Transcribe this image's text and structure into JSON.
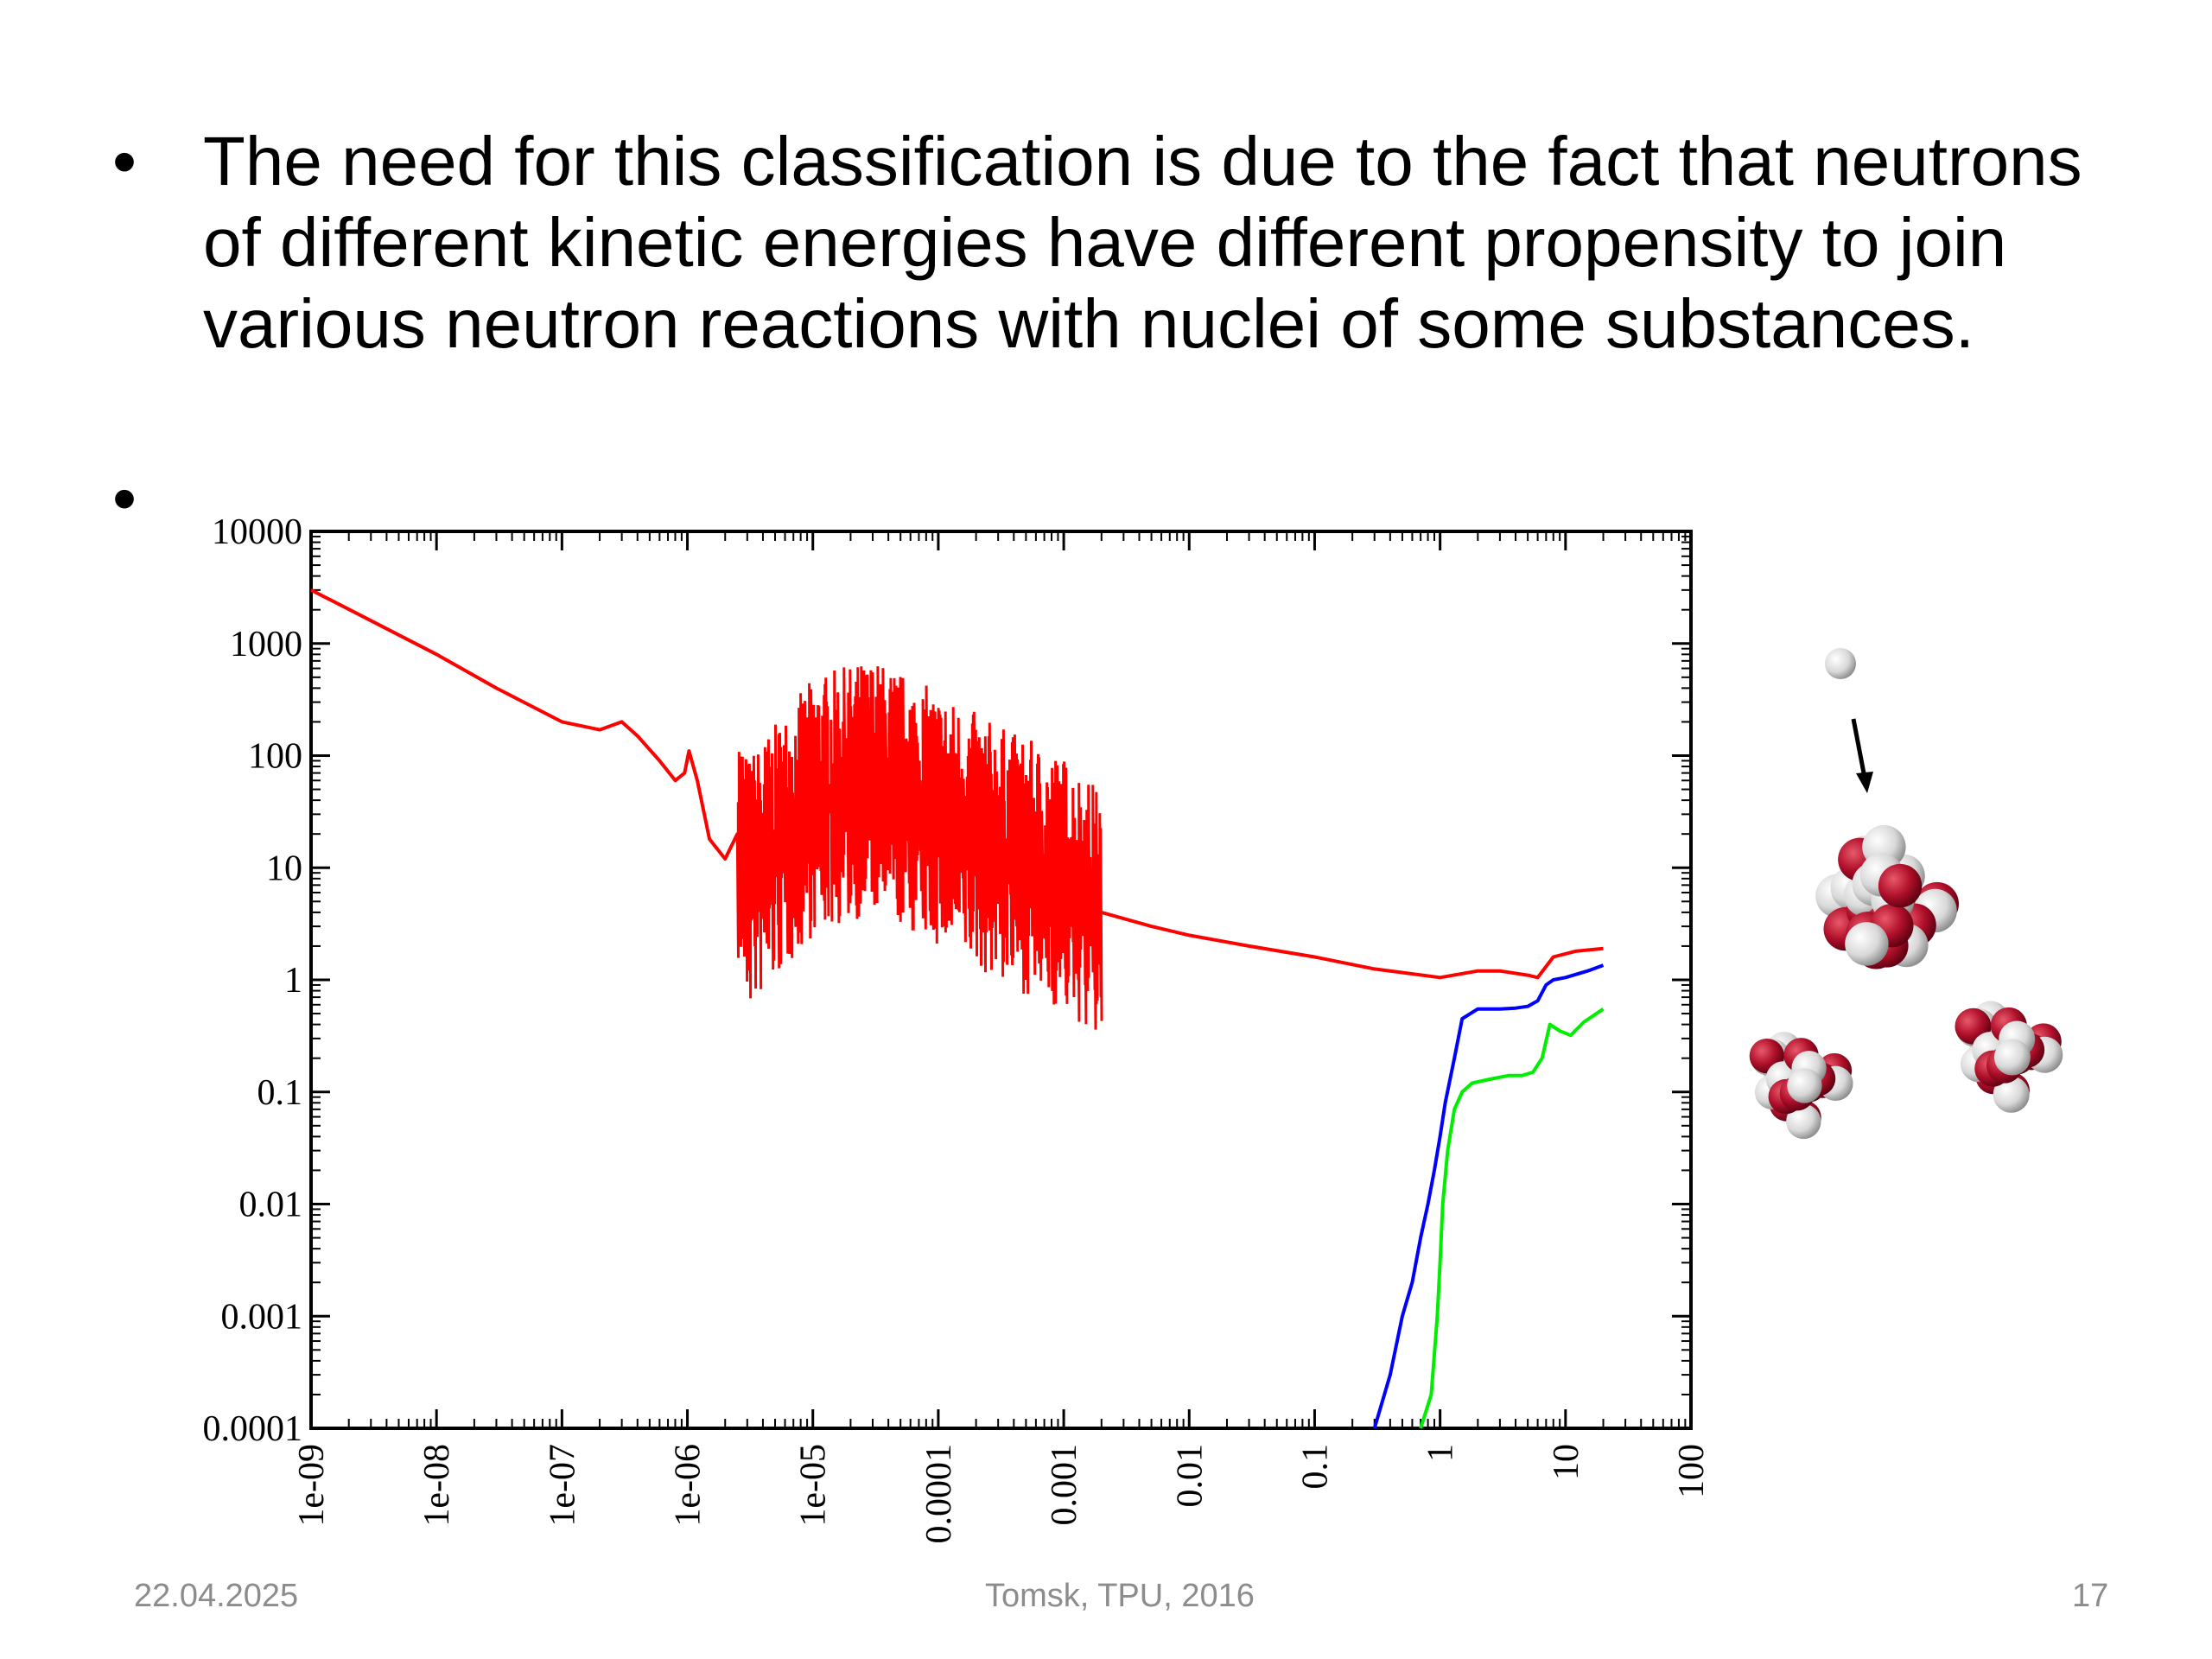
{
  "slide": {
    "bullets": [
      "The need for this classification is due to the fact that neutrons of different kinetic energies have different propensity to join various neutron reactions with nuclei of some substances.",
      ""
    ],
    "bullet_symbol": "•"
  },
  "footer": {
    "date": "22.04.2025",
    "center": "Tomsk, TPU, 2016",
    "page": "17"
  },
  "chart_data": {
    "type": "line",
    "title": "",
    "xlabel": "",
    "ylabel": "",
    "x_scale": "log",
    "y_scale": "log",
    "xlim": [
      1e-09,
      100
    ],
    "ylim": [
      0.0001,
      10000
    ],
    "x_tick_labels": [
      "1e-09",
      "1e-08",
      "1e-07",
      "1e-06",
      "1e-05",
      "0.0001",
      "0.001",
      "0.01",
      "0.1",
      "1",
      "10",
      "100"
    ],
    "y_tick_labels": [
      "10000",
      "1000",
      "100",
      "10",
      "1",
      "0.1",
      "0.01",
      "0.001",
      "0.0001"
    ],
    "grid": false,
    "series": [
      {
        "color": "#ff0000",
        "x": [
          1e-09,
          3e-09,
          1e-08,
          3e-08,
          1e-07,
          2e-07,
          3e-07,
          4e-07,
          6e-07,
          8e-07,
          9.5e-07,
          1.03e-06,
          1.2e-06,
          1.5e-06,
          2e-06,
          2.5e-06,
          3e-06,
          5e-06,
          1e-05,
          3e-05,
          0.0001,
          0.0003,
          0.001,
          0.002,
          0.005,
          0.01,
          0.03,
          0.1,
          0.3,
          1,
          2,
          3,
          5,
          6,
          8,
          12,
          20
        ],
        "y": [
          3000,
          1600,
          800,
          400,
          200,
          170,
          200,
          150,
          90,
          60,
          70,
          110,
          60,
          18,
          12,
          20,
          8,
          15,
          40,
          60,
          30,
          15,
          8,
          4,
          3,
          2.5,
          2,
          1.6,
          1.25,
          1.05,
          1.2,
          1.2,
          1.1,
          1.05,
          1.6,
          1.8,
          1.9
        ]
      },
      {
        "color": "#0000ff",
        "x": [
          0.3,
          0.4,
          0.5,
          0.6,
          0.7,
          0.8,
          0.9,
          1.0,
          1.1,
          1.3,
          1.5,
          2,
          3,
          4,
          5,
          6,
          7,
          8,
          10,
          15,
          20
        ],
        "y": [
          0.0001,
          0.0003,
          0.001,
          0.002,
          0.005,
          0.01,
          0.02,
          0.04,
          0.08,
          0.2,
          0.45,
          0.55,
          0.55,
          0.56,
          0.58,
          0.65,
          0.9,
          1.0,
          1.05,
          1.2,
          1.35
        ]
      },
      {
        "color": "#00ee00",
        "x": [
          0.7,
          0.85,
          0.95,
          1.0,
          1.05,
          1.15,
          1.3,
          1.5,
          1.8,
          2.5,
          3.5,
          4.5,
          5.5,
          6.5,
          7.5,
          9,
          11,
          14,
          20
        ],
        "y": [
          0.0001,
          0.0002,
          0.001,
          0.003,
          0.01,
          0.03,
          0.07,
          0.1,
          0.12,
          0.13,
          0.14,
          0.14,
          0.15,
          0.2,
          0.4,
          0.35,
          0.32,
          0.42,
          0.55
        ]
      }
    ]
  }
}
